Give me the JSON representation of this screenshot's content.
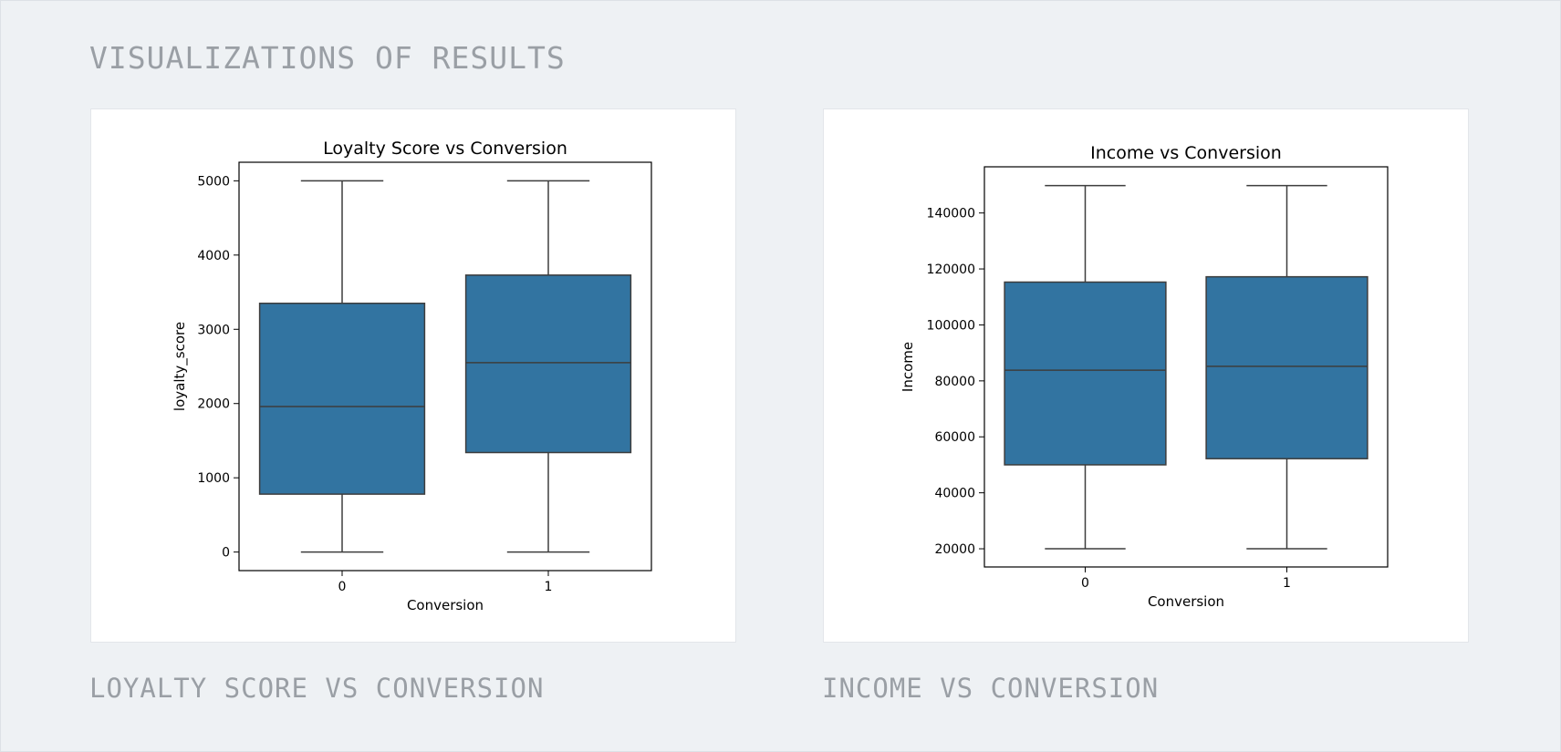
{
  "page": {
    "heading": "VISUALIZATIONS OF RESULTS",
    "captions": [
      "LOYALTY SCORE VS CONVERSION",
      "INCOME VS CONVERSION"
    ]
  },
  "colors": {
    "box_fill": "#3274a1",
    "line": "#3d3d3d",
    "background": "#eef1f4",
    "caption_text": "#9a9fa5"
  },
  "chart_data": [
    {
      "type": "box",
      "title": "Loyalty Score vs Conversion",
      "xlabel": "Conversion",
      "ylabel": "loyalty_score",
      "categories": [
        "0",
        "1"
      ],
      "boxes": [
        {
          "category": "0",
          "min": 0,
          "q1": 780,
          "median": 1960,
          "q3": 3350,
          "max": 5000
        },
        {
          "category": "1",
          "min": 0,
          "q1": 1340,
          "median": 2550,
          "q3": 3730,
          "max": 5000
        }
      ],
      "ylim": [
        -250,
        5250
      ],
      "yticks": [
        0,
        1000,
        2000,
        3000,
        4000,
        5000
      ],
      "grid": false
    },
    {
      "type": "box",
      "title": "Income vs Conversion",
      "xlabel": "Conversion",
      "ylabel": "Income",
      "categories": [
        "0",
        "1"
      ],
      "boxes": [
        {
          "category": "0",
          "min": 20000,
          "q1": 50000,
          "median": 83800,
          "q3": 115300,
          "max": 149800
        },
        {
          "category": "1",
          "min": 20000,
          "q1": 52200,
          "median": 85200,
          "q3": 117200,
          "max": 149800
        }
      ],
      "ylim": [
        13500,
        156500
      ],
      "yticks": [
        20000,
        40000,
        60000,
        80000,
        100000,
        120000,
        140000
      ],
      "grid": false
    }
  ]
}
